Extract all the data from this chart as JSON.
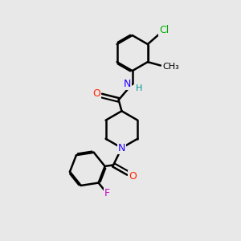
{
  "bg_color": "#e8e8e8",
  "bond_color": "#000000",
  "bond_width": 1.8,
  "atom_colors": {
    "O": "#ff2200",
    "N": "#2200ff",
    "F": "#cc00cc",
    "Cl": "#00aa00",
    "C": "#000000",
    "H": "#009999"
  },
  "font_size": 9,
  "fig_size": [
    3.0,
    3.0
  ],
  "dpi": 100,
  "ring_r": 0.75,
  "pip_r": 0.78
}
